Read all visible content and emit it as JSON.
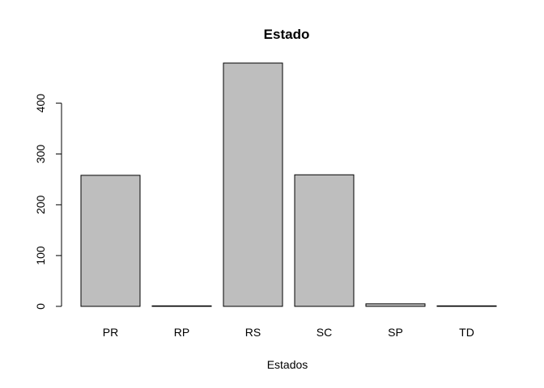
{
  "chart_data": {
    "type": "bar",
    "title": "Estado",
    "xlabel": "Estados",
    "ylabel": "",
    "categories": [
      "PR",
      "RP",
      "RS",
      "SC",
      "SP",
      "TD"
    ],
    "values": [
      258,
      1,
      479,
      259,
      5,
      1
    ],
    "ylim": [
      0,
      479
    ],
    "yticks": [
      0,
      100,
      200,
      300,
      400
    ],
    "bar_fill": "#bebebe",
    "bar_stroke": "#000000",
    "grid": false,
    "legend": "none"
  }
}
